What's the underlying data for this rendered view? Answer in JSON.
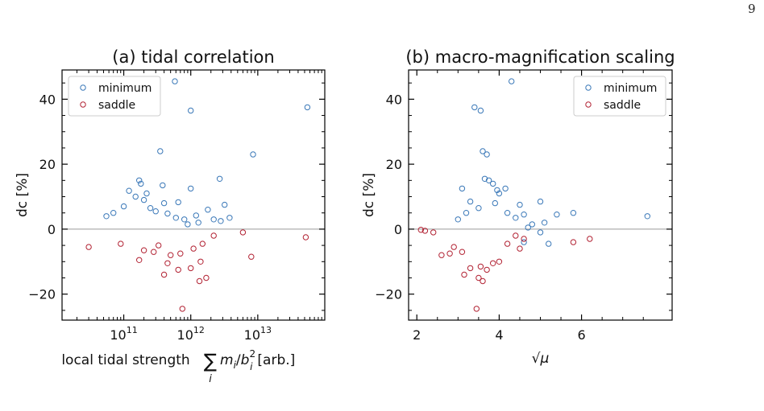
{
  "page": {
    "number": "9"
  },
  "colors": {
    "minimum": "#3a78b8",
    "saddle": "#b22233",
    "zero_line": "#9a9a9a",
    "frame": "#000000"
  },
  "chart_data": [
    {
      "type": "scatter",
      "title": "(a) tidal correlation",
      "xlabel": "local tidal strength",
      "xlabel_math": {
        "sum": "∑",
        "sub_i": "i",
        "m": "m",
        "m_sub": "i",
        "slash": "/",
        "b": "b",
        "b_sub": "i",
        "b_sup": "2",
        "unit": "[arb.]"
      },
      "ylabel": "dc [%]",
      "x_scale": "log",
      "xlim": [
        12000000000.0,
        100000000000000.0
      ],
      "ylim": [
        -28,
        49
      ],
      "x_ticks": [
        {
          "value": 100000000000.0,
          "base": "10",
          "exp": "11"
        },
        {
          "value": 1000000000000.0,
          "base": "10",
          "exp": "12"
        },
        {
          "value": 10000000000000.0,
          "base": "10",
          "exp": "13"
        }
      ],
      "y_ticks": [
        {
          "value": 40,
          "label": "40"
        },
        {
          "value": 20,
          "label": "20"
        },
        {
          "value": 0,
          "label": "0"
        },
        {
          "value": -20,
          "label": "−20"
        }
      ],
      "zero_line": 0,
      "legend": {
        "placement": "top-left"
      },
      "series": [
        {
          "name": "minimum",
          "color": "#3a78b8",
          "points": [
            [
              580000000000.0,
              45.5
            ],
            [
              1000000000000.0,
              36.5
            ],
            [
              55000000000000.0,
              37.5
            ],
            [
              8500000000000.0,
              23
            ],
            [
              350000000000.0,
              24
            ],
            [
              2700000000000.0,
              15.5
            ],
            [
              170000000000.0,
              15
            ],
            [
              180000000000.0,
              14
            ],
            [
              380000000000.0,
              13.5
            ],
            [
              1000000000000.0,
              12.5
            ],
            [
              120000000000.0,
              11.8
            ],
            [
              220000000000.0,
              11
            ],
            [
              150000000000.0,
              10
            ],
            [
              200000000000.0,
              9
            ],
            [
              650000000000.0,
              8.3
            ],
            [
              400000000000.0,
              8
            ],
            [
              3200000000000.0,
              7.5
            ],
            [
              100000000000.0,
              7
            ],
            [
              250000000000.0,
              6.5
            ],
            [
              1800000000000.0,
              6
            ],
            [
              300000000000.0,
              5.5
            ],
            [
              70000000000.0,
              5
            ],
            [
              450000000000.0,
              4.8
            ],
            [
              1200000000000.0,
              4.2
            ],
            [
              55000000000.0,
              4
            ],
            [
              3800000000000.0,
              3.5
            ],
            [
              2800000000000.0,
              2.5
            ],
            [
              800000000000.0,
              3
            ],
            [
              1300000000000.0,
              2
            ],
            [
              900000000000.0,
              1.5
            ],
            [
              600000000000.0,
              3.5
            ],
            [
              2200000000000.0,
              3
            ]
          ]
        },
        {
          "name": "saddle",
          "color": "#b22233",
          "points": [
            [
              750000000000.0,
              -24.5
            ],
            [
              1350000000000.0,
              -16
            ],
            [
              1700000000000.0,
              -15
            ],
            [
              400000000000.0,
              -14
            ],
            [
              650000000000.0,
              -12.5
            ],
            [
              1000000000000.0,
              -12
            ],
            [
              8000000000000.0,
              -8.5
            ],
            [
              170000000000.0,
              -9.5
            ],
            [
              450000000000.0,
              -10.5
            ],
            [
              1400000000000.0,
              -10
            ],
            [
              500000000000.0,
              -8
            ],
            [
              700000000000.0,
              -7.5
            ],
            [
              280000000000.0,
              -7
            ],
            [
              1100000000000.0,
              -6
            ],
            [
              30000000000.0,
              -5.5
            ],
            [
              200000000000.0,
              -6.5
            ],
            [
              1500000000000.0,
              -4.5
            ],
            [
              6000000000000.0,
              -1
            ],
            [
              52000000000000.0,
              -2.5
            ],
            [
              2200000000000.0,
              -2
            ],
            [
              330000000000.0,
              -5
            ],
            [
              90000000000.0,
              -4.5
            ]
          ]
        }
      ]
    },
    {
      "type": "scatter",
      "title": "(b) macro-magnification scaling",
      "xlabel": "√μ",
      "ylabel": "dc [%]",
      "x_scale": "linear",
      "xlim": [
        1.8,
        8.2
      ],
      "ylim": [
        -28,
        49
      ],
      "x_ticks": [
        {
          "value": 2,
          "label": "2"
        },
        {
          "value": 4,
          "label": "4"
        },
        {
          "value": 6,
          "label": "6"
        }
      ],
      "y_ticks": [
        {
          "value": 40,
          "label": "40"
        },
        {
          "value": 20,
          "label": "20"
        },
        {
          "value": 0,
          "label": "0"
        },
        {
          "value": -20,
          "label": "−20"
        }
      ],
      "zero_line": 0,
      "legend": {
        "placement": "top-right"
      },
      "series": [
        {
          "name": "minimum",
          "color": "#3a78b8",
          "points": [
            [
              4.3,
              45.5
            ],
            [
              3.4,
              37.5
            ],
            [
              3.55,
              36.5
            ],
            [
              3.6,
              24
            ],
            [
              3.7,
              23
            ],
            [
              3.65,
              15.5
            ],
            [
              3.75,
              15
            ],
            [
              3.85,
              14
            ],
            [
              3.95,
              12
            ],
            [
              3.1,
              12.5
            ],
            [
              4.0,
              11
            ],
            [
              4.15,
              12.5
            ],
            [
              3.3,
              8.5
            ],
            [
              3.9,
              8
            ],
            [
              4.5,
              7.5
            ],
            [
              5.0,
              8.5
            ],
            [
              5.8,
              5
            ],
            [
              7.6,
              4
            ],
            [
              5.4,
              4.5
            ],
            [
              4.6,
              4.5
            ],
            [
              5.1,
              2
            ],
            [
              4.8,
              1.5
            ],
            [
              3.0,
              3
            ],
            [
              4.2,
              5
            ],
            [
              4.4,
              3.5
            ],
            [
              3.2,
              5
            ],
            [
              3.5,
              6.5
            ],
            [
              4.7,
              0.5
            ],
            [
              5.2,
              -4.5
            ],
            [
              5.0,
              -1
            ],
            [
              4.6,
              -4
            ]
          ]
        },
        {
          "name": "saddle",
          "color": "#b22233",
          "points": [
            [
              3.45,
              -24.5
            ],
            [
              3.6,
              -16
            ],
            [
              3.5,
              -15
            ],
            [
              3.15,
              -14
            ],
            [
              3.3,
              -12
            ],
            [
              3.55,
              -11.5
            ],
            [
              3.85,
              -10.5
            ],
            [
              3.7,
              -12.5
            ],
            [
              4.0,
              -10
            ],
            [
              2.6,
              -8
            ],
            [
              2.8,
              -7.5
            ],
            [
              2.4,
              -1
            ],
            [
              2.2,
              -0.5
            ],
            [
              2.1,
              -0.2
            ],
            [
              5.8,
              -4
            ],
            [
              6.2,
              -3
            ],
            [
              4.5,
              -6
            ],
            [
              4.6,
              -3
            ],
            [
              2.9,
              -5.5
            ],
            [
              3.1,
              -7
            ],
            [
              4.2,
              -4.5
            ],
            [
              4.4,
              -2
            ]
          ]
        }
      ]
    }
  ]
}
